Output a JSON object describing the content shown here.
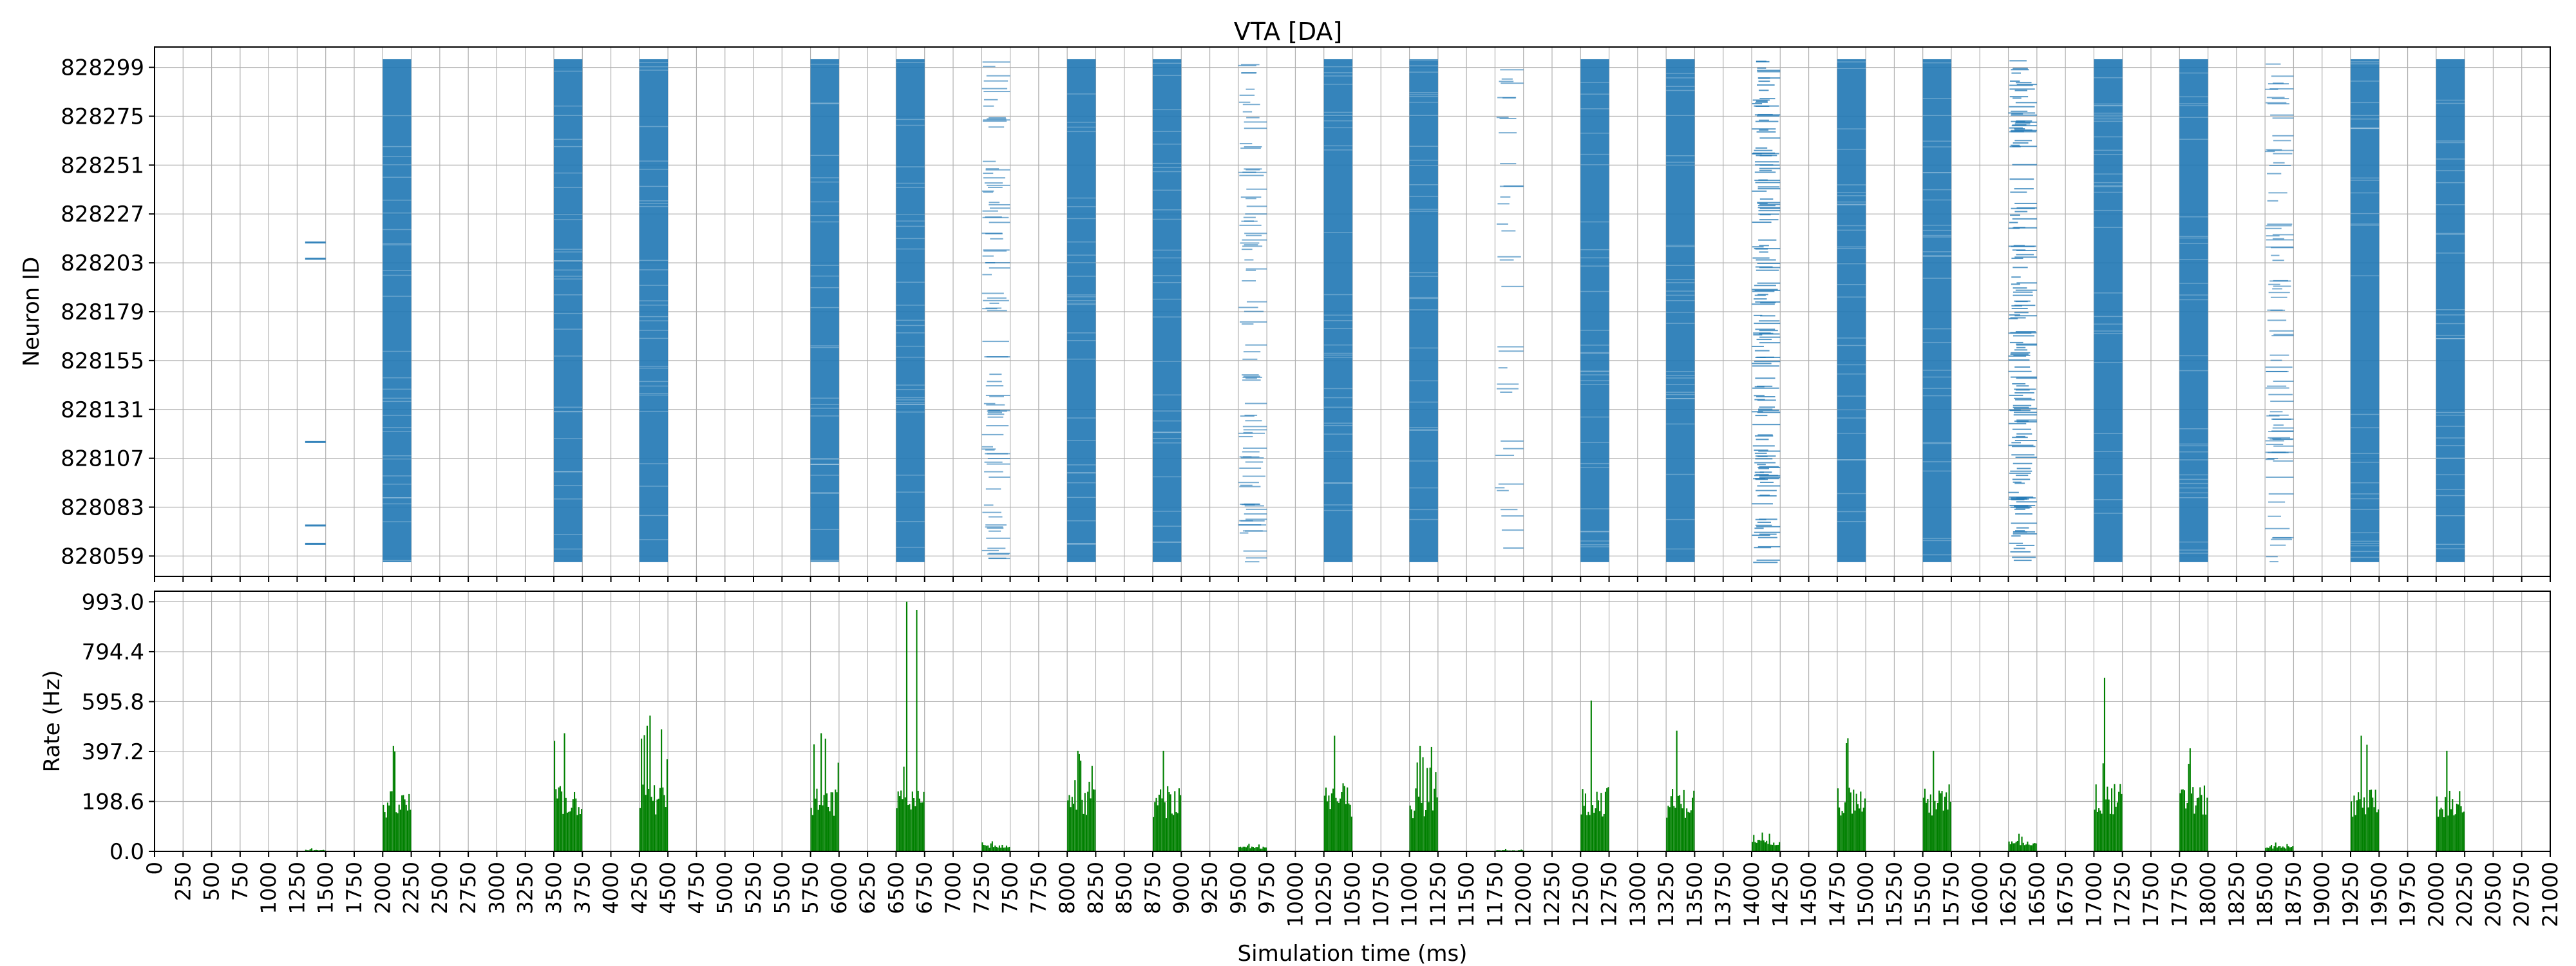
{
  "chart_data": [
    {
      "type": "scatter",
      "title": "VTA [DA]",
      "xlabel": "",
      "ylabel": "Neuron ID",
      "xlim": [
        0,
        21000
      ],
      "ylim": [
        828049,
        828309
      ],
      "yticks": [
        "828059",
        "828083",
        "828107",
        "828131",
        "828155",
        "828179",
        "828203",
        "828227",
        "828251",
        "828275",
        "828299"
      ],
      "ytick_values": [
        828059,
        828083,
        828107,
        828131,
        828155,
        828179,
        828203,
        828227,
        828251,
        828275,
        828299
      ],
      "grid": true,
      "marker_color": "#1f77b4",
      "bursts": [
        {
          "start": 1320,
          "end": 1500,
          "density": "sparse-rows",
          "rows": [
            828065,
            828074,
            828115,
            828205,
            828213
          ]
        },
        {
          "start": 2000,
          "end": 2250,
          "density": "dense"
        },
        {
          "start": 3500,
          "end": 3750,
          "density": "dense"
        },
        {
          "start": 4250,
          "end": 4500,
          "density": "dense"
        },
        {
          "start": 5750,
          "end": 6000,
          "density": "dense"
        },
        {
          "start": 6500,
          "end": 6750,
          "density": "dense"
        },
        {
          "start": 7250,
          "end": 7500,
          "density": "sparse"
        },
        {
          "start": 8000,
          "end": 8250,
          "density": "dense"
        },
        {
          "start": 8750,
          "end": 9000,
          "density": "dense"
        },
        {
          "start": 9500,
          "end": 9750,
          "density": "sparse"
        },
        {
          "start": 10250,
          "end": 10500,
          "density": "dense"
        },
        {
          "start": 11000,
          "end": 11250,
          "density": "dense"
        },
        {
          "start": 11750,
          "end": 12000,
          "density": "very-sparse"
        },
        {
          "start": 12500,
          "end": 12750,
          "density": "dense"
        },
        {
          "start": 13250,
          "end": 13500,
          "density": "dense"
        },
        {
          "start": 14000,
          "end": 14250,
          "density": "medium"
        },
        {
          "start": 14750,
          "end": 15000,
          "density": "dense"
        },
        {
          "start": 15500,
          "end": 15750,
          "density": "dense"
        },
        {
          "start": 16250,
          "end": 16500,
          "density": "medium"
        },
        {
          "start": 17000,
          "end": 17250,
          "density": "dense"
        },
        {
          "start": 17750,
          "end": 18000,
          "density": "dense"
        },
        {
          "start": 18500,
          "end": 18750,
          "density": "sparse"
        },
        {
          "start": 19250,
          "end": 19500,
          "density": "dense"
        },
        {
          "start": 20000,
          "end": 20250,
          "density": "dense"
        }
      ]
    },
    {
      "type": "bar",
      "title": "",
      "xlabel": "Simulation time (ms)",
      "ylabel": "Rate (Hz)",
      "xlim": [
        0,
        21000
      ],
      "ylim": [
        0,
        1035
      ],
      "yticks": [
        "0.0",
        "198.6",
        "397.2",
        "595.8",
        "794.4",
        "993.0"
      ],
      "ytick_values": [
        0,
        198.6,
        397.2,
        595.8,
        794.4,
        993.0
      ],
      "xticks": [
        "0",
        "250",
        "500",
        "750",
        "1000",
        "1250",
        "1500",
        "1750",
        "2000",
        "2250",
        "2500",
        "2750",
        "3000",
        "3250",
        "3500",
        "3750",
        "4000",
        "4250",
        "4500",
        "4750",
        "5000",
        "5250",
        "5500",
        "5750",
        "6000",
        "6250",
        "6500",
        "6750",
        "7000",
        "7250",
        "7500",
        "7750",
        "8000",
        "8250",
        "8500",
        "8750",
        "9000",
        "9250",
        "9500",
        "9750",
        "10000",
        "10250",
        "10500",
        "10750",
        "11000",
        "11250",
        "11500",
        "11750",
        "12000",
        "12250",
        "12500",
        "12750",
        "13000",
        "13250",
        "13500",
        "13750",
        "14000",
        "14250",
        "14500",
        "14750",
        "15000",
        "15250",
        "15500",
        "15750",
        "16000",
        "16250",
        "16500",
        "16750",
        "17000",
        "17250",
        "17500",
        "17750",
        "18000",
        "18250",
        "18500",
        "18750",
        "19000",
        "19250",
        "19500",
        "19750",
        "20000",
        "20250",
        "20500",
        "20750",
        "21000"
      ],
      "grid": true,
      "bar_color": "#008000",
      "bursts": [
        {
          "start": 1320,
          "end": 1500,
          "base": 6,
          "peak": 12
        },
        {
          "start": 2000,
          "end": 2250,
          "base": 230,
          "peak": 420
        },
        {
          "start": 3500,
          "end": 3750,
          "base": 250,
          "peak": 470
        },
        {
          "start": 4250,
          "end": 4500,
          "base": 260,
          "peak": 540
        },
        {
          "start": 5750,
          "end": 6000,
          "base": 240,
          "peak": 470
        },
        {
          "start": 6500,
          "end": 6750,
          "base": 240,
          "peak": 993
        },
        {
          "start": 7250,
          "end": 7500,
          "base": 25,
          "peak": 40
        },
        {
          "start": 8000,
          "end": 8250,
          "base": 240,
          "peak": 400
        },
        {
          "start": 8750,
          "end": 9000,
          "base": 240,
          "peak": 400
        },
        {
          "start": 9500,
          "end": 9750,
          "base": 18,
          "peak": 30
        },
        {
          "start": 10250,
          "end": 10500,
          "base": 250,
          "peak": 460
        },
        {
          "start": 11000,
          "end": 11250,
          "base": 240,
          "peak": 420
        },
        {
          "start": 11750,
          "end": 12000,
          "base": 5,
          "peak": 10
        },
        {
          "start": 12500,
          "end": 12750,
          "base": 250,
          "peak": 600
        },
        {
          "start": 13250,
          "end": 13500,
          "base": 240,
          "peak": 480
        },
        {
          "start": 14000,
          "end": 14250,
          "base": 45,
          "peak": 75
        },
        {
          "start": 14750,
          "end": 15000,
          "base": 250,
          "peak": 450
        },
        {
          "start": 15500,
          "end": 15750,
          "base": 240,
          "peak": 400
        },
        {
          "start": 16250,
          "end": 16500,
          "base": 40,
          "peak": 70
        },
        {
          "start": 17000,
          "end": 17250,
          "base": 260,
          "peak": 690
        },
        {
          "start": 17750,
          "end": 18000,
          "base": 250,
          "peak": 410
        },
        {
          "start": 18500,
          "end": 18750,
          "base": 20,
          "peak": 35
        },
        {
          "start": 19250,
          "end": 19500,
          "base": 250,
          "peak": 460
        },
        {
          "start": 20000,
          "end": 20250,
          "base": 240,
          "peak": 400
        }
      ]
    }
  ]
}
